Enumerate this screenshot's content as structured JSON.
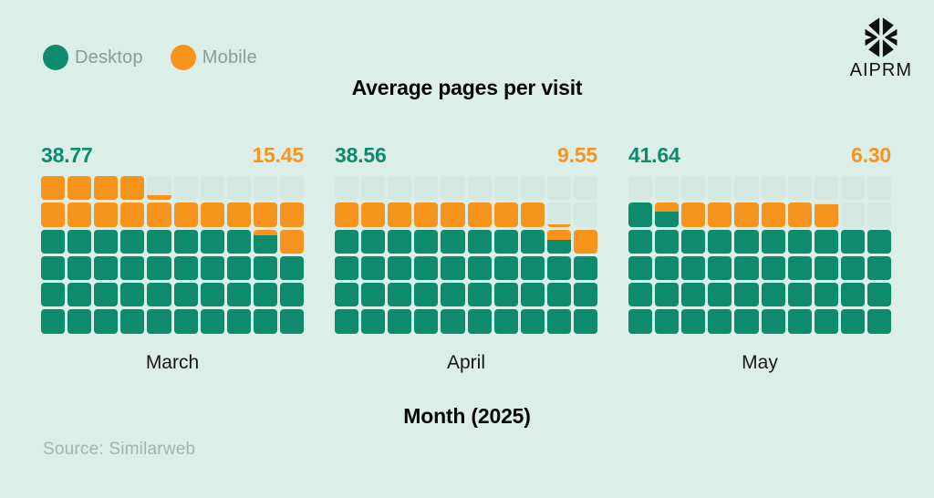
{
  "title": "Average pages per visit",
  "xlabel": "Month (2025)",
  "source": "Source: Similarweb",
  "brand": {
    "name": "AIPRM"
  },
  "legend": [
    {
      "label": "Desktop",
      "color": "#0e8a6d"
    },
    {
      "label": "Mobile",
      "color": "#f7941e"
    }
  ],
  "colors": {
    "background": "#dbeee8",
    "empty_cell": "#d2e8e0",
    "desktop": "#0e8a6d",
    "mobile": "#f7941e",
    "muted_text": "#8d9c98",
    "source_text": "#a2b3ae",
    "text": "#070707"
  },
  "months": [
    {
      "label": "March",
      "desktop_value": "38.77",
      "mobile_value": "15.45"
    },
    {
      "label": "April",
      "desktop_value": "38.56",
      "mobile_value": "9.55"
    },
    {
      "label": "May",
      "desktop_value": "41.64",
      "mobile_value": "6.30"
    }
  ],
  "chart_data": {
    "type": "waffle",
    "title": "Average pages per visit",
    "xlabel": "Month (2025)",
    "categories": [
      "March",
      "April",
      "May"
    ],
    "series": [
      {
        "name": "Desktop",
        "color": "#0e8a6d",
        "values": [
          38.77,
          38.56,
          41.64
        ]
      },
      {
        "name": "Mobile",
        "color": "#f7941e",
        "values": [
          15.45,
          9.55,
          6.3
        ]
      }
    ],
    "grid": {
      "rows": 6,
      "columns": 10,
      "units_per_cell": 1,
      "capacity": 60
    },
    "fill_order": "bottom-to-top, left-to-right; Desktop first, Mobile stacked after",
    "legend_position": "top-left",
    "value_labels": "Desktop value top-left of each grid, Mobile value top-right",
    "source": "Source: Similarweb"
  }
}
